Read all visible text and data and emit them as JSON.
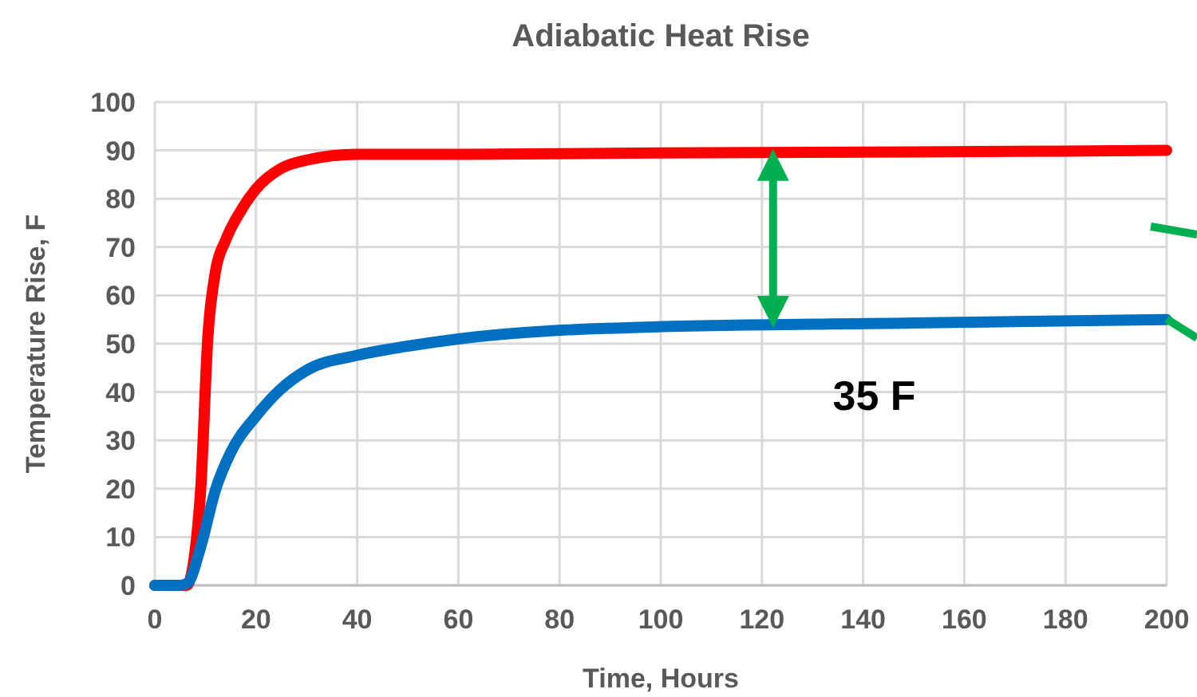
{
  "chart_data": {
    "type": "line",
    "title": "Adiabatic Heat Rise",
    "xlabel": "Time, Hours",
    "ylabel": "Temperature Rise, F",
    "xlim": [
      0,
      200
    ],
    "xticks": [
      0,
      20,
      40,
      60,
      80,
      100,
      120,
      140,
      160,
      180,
      200
    ],
    "ylim": [
      0,
      100
    ],
    "yticks": [
      0,
      10,
      20,
      30,
      40,
      50,
      60,
      70,
      80,
      90,
      100
    ],
    "grid": true,
    "series": [
      {
        "color": "#ff0000",
        "x": [
          0,
          6.3,
          9,
          10.5,
          12,
          14,
          17,
          20,
          25,
          30,
          40,
          60,
          100,
          150,
          200
        ],
        "values": [
          0,
          0,
          18.7,
          51.6,
          65,
          71.4,
          77.5,
          82,
          86.3,
          88,
          89.2,
          89.2,
          89.5,
          89.7,
          90
        ]
      },
      {
        "color": "#0070c0",
        "x": [
          0,
          5,
          6.5,
          9,
          12,
          15,
          20,
          25,
          30,
          40,
          50,
          60,
          95.6,
          150,
          200
        ],
        "values": [
          0,
          0,
          0.5,
          7.7,
          19.8,
          27.5,
          35,
          40.7,
          44.5,
          47.6,
          49.5,
          51,
          53.4,
          54.3,
          55
        ]
      }
    ],
    "annotations": [
      "35 F"
    ]
  }
}
